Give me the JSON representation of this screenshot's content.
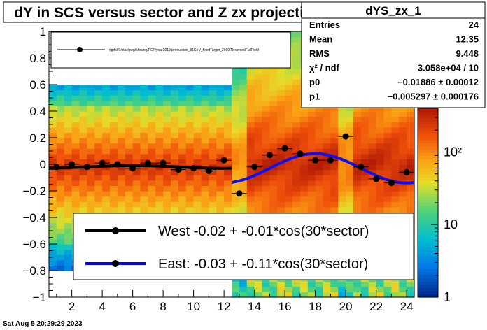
{
  "title": "dY in SCS versus sector and Z zx projection",
  "timestamp": "Sat Aug  5 20:29:29 2023",
  "stats": {
    "name": "dYS_zx_1",
    "rows": [
      {
        "label": "Entries",
        "value": "24"
      },
      {
        "label": "Mean",
        "value": "12.35"
      },
      {
        "label": "RMS",
        "value": "9.448"
      },
      {
        "label": "χ² / ndf",
        "value": "3.058e+04 / 10"
      },
      {
        "label": "p0",
        "value": "−0.01886 ± 0.00012"
      },
      {
        "label": "p1",
        "value": "−0.005297 ± 0.000176"
      }
    ]
  },
  "legend_top": {
    "text": "/gpfs01/star/pwg/chsung/REF/year2019/production_31GeV_fixedTarget_2019/ReversedFullField"
  },
  "legend_bottom": [
    {
      "label": "West -0.02 + -0.01*cos(30*sector)",
      "color": "#000000"
    },
    {
      "label": "East: -0.03 + -0.11*cos(30*sector)",
      "color": "#0000ff"
    }
  ],
  "colors": {
    "west_fit": "#000000",
    "east_fit": "#1010ee",
    "markers": "#000000"
  },
  "chart_data": {
    "type": "scatter",
    "xlim": [
      0.5,
      24.5
    ],
    "ylim": [
      -1,
      1
    ],
    "x_ticks": [
      2,
      4,
      6,
      8,
      10,
      12,
      14,
      16,
      18,
      20,
      22,
      24
    ],
    "y_ticks": [
      -1,
      -0.8,
      -0.6,
      -0.4,
      -0.2,
      0,
      0.2,
      0.4,
      0.6,
      0.8,
      1
    ],
    "z_scale": "log",
    "z_ticks": [
      {
        "label": "1",
        "value": 1
      },
      {
        "label": "10",
        "value": 10
      },
      {
        "label": "10²",
        "value": 100
      }
    ],
    "points": {
      "x": [
        1,
        2,
        3,
        4,
        5,
        6,
        7,
        8,
        9,
        10,
        11,
        12,
        13,
        14,
        15,
        16,
        17,
        18,
        19,
        20,
        21,
        22,
        23,
        24
      ],
      "y": [
        -0.02,
        0.0,
        -0.02,
        0.01,
        0.0,
        -0.03,
        0.01,
        0.01,
        -0.04,
        -0.03,
        -0.05,
        0.03,
        -0.22,
        -0.02,
        0.07,
        0.12,
        0.08,
        0.03,
        0.03,
        0.21,
        -0.02,
        -0.11,
        -0.14,
        -0.06
      ]
    },
    "fits": [
      {
        "name": "West",
        "p0": -0.02,
        "p1": -0.01,
        "x_range": [
          0.5,
          12.5
        ]
      },
      {
        "name": "East",
        "p0": -0.03,
        "p1": -0.11,
        "x_range": [
          12.5,
          24.5
        ]
      }
    ]
  }
}
